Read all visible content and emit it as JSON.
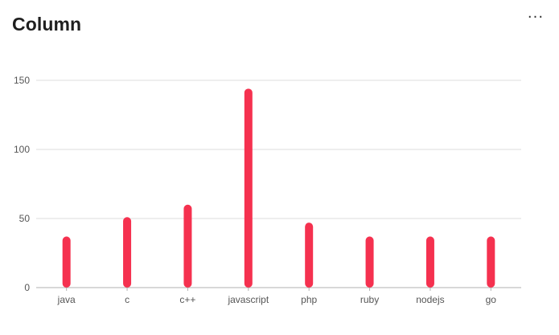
{
  "header": {
    "title": "Column",
    "more_label": "···"
  },
  "chart_data": {
    "type": "bar",
    "title": "Column",
    "categories": [
      "java",
      "c",
      "c++",
      "javascript",
      "php",
      "ruby",
      "nodejs",
      "go"
    ],
    "values": [
      37,
      51,
      60,
      144,
      47,
      37,
      37,
      37
    ],
    "yticks": [
      0,
      50,
      100,
      150
    ],
    "ylim": [
      0,
      150
    ],
    "xlabel": "",
    "ylabel": "",
    "grid": true,
    "legend": "none",
    "bar_color": "#f5314f",
    "grid_color": "#dddddd",
    "axis_color": "#b0b0b0"
  }
}
